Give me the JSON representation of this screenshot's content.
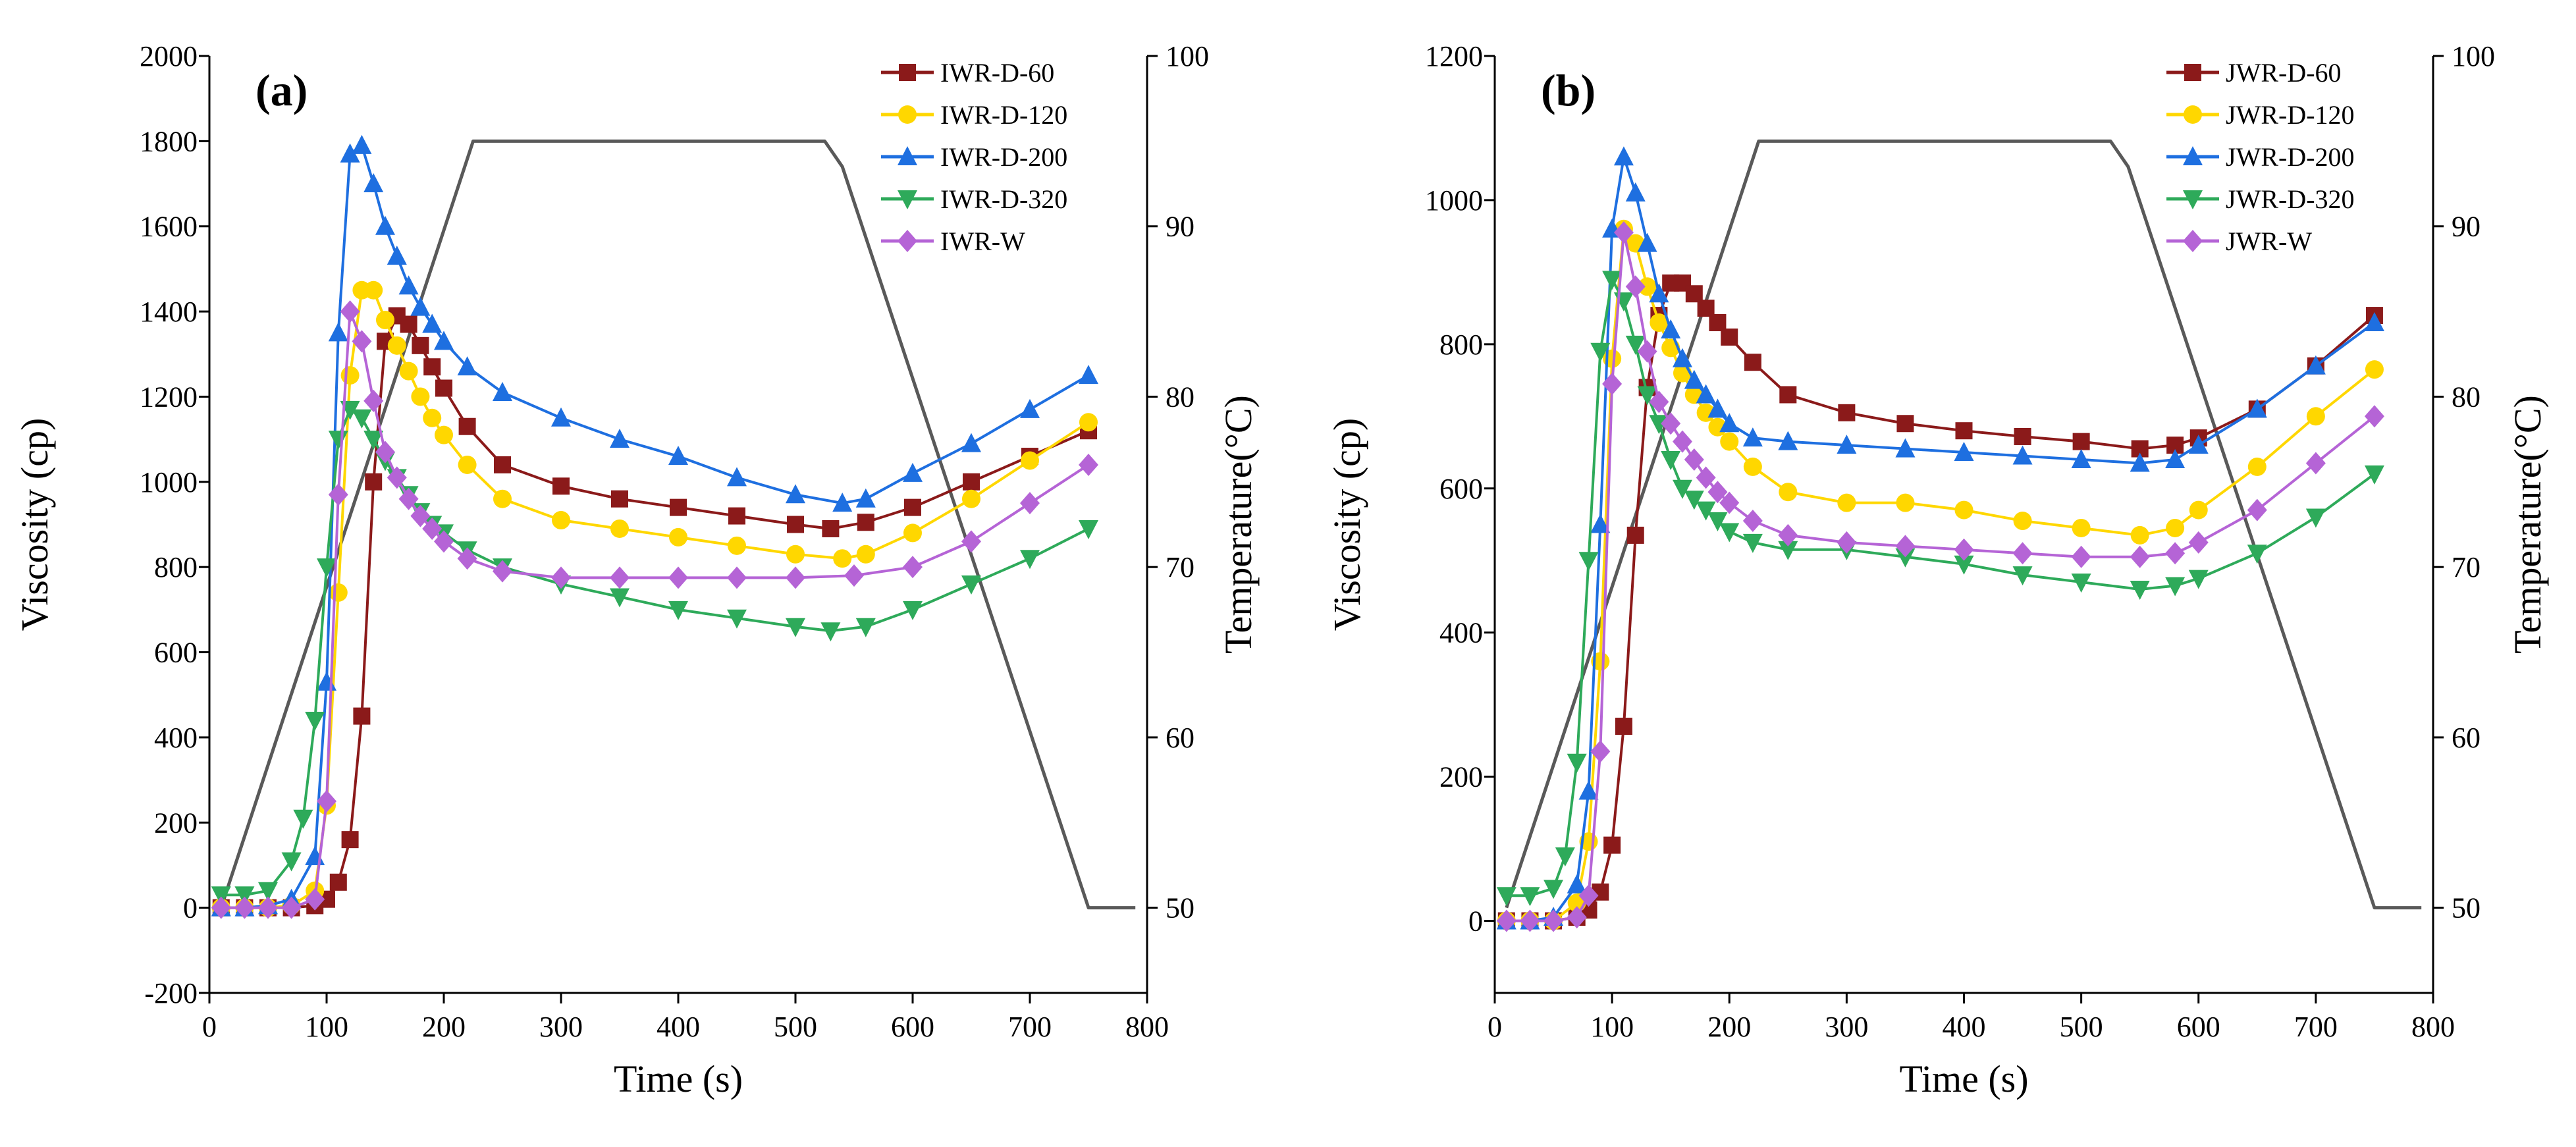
{
  "chart_data": [
    {
      "type": "line",
      "panel_label": "(a)",
      "xlabel": "Time (s)",
      "ylabel": "Viscosity (cp)",
      "y2label": "Temperature(°C)",
      "xlim": [
        0,
        800
      ],
      "ylim": [
        -200,
        2000
      ],
      "y2lim": [
        45,
        100
      ],
      "xticks": [
        0,
        100,
        200,
        300,
        400,
        500,
        600,
        700,
        800
      ],
      "yticks": [
        -200,
        0,
        200,
        400,
        600,
        800,
        1000,
        1200,
        1400,
        1600,
        1800,
        2000
      ],
      "y2ticks": [
        50,
        60,
        70,
        80,
        90,
        100
      ],
      "legend_position": "top-right",
      "temperature": {
        "x": [
          10,
          225,
          525,
          540,
          750,
          790
        ],
        "y": [
          50,
          95,
          95,
          93.5,
          50,
          50
        ]
      },
      "series": [
        {
          "name": "IWR-D-60",
          "color": "#8B1A1A",
          "marker": "square",
          "x": [
            10,
            30,
            50,
            70,
            90,
            100,
            110,
            120,
            130,
            140,
            150,
            160,
            170,
            180,
            190,
            200,
            220,
            250,
            300,
            350,
            400,
            450,
            500,
            530,
            560,
            600,
            650,
            700,
            750
          ],
          "y": [
            0,
            0,
            0,
            0,
            5,
            20,
            60,
            160,
            450,
            1000,
            1330,
            1390,
            1370,
            1320,
            1270,
            1220,
            1130,
            1040,
            990,
            960,
            940,
            920,
            900,
            890,
            905,
            940,
            1000,
            1060,
            1120
          ]
        },
        {
          "name": "IWR-D-120",
          "color": "#FFD700",
          "marker": "circle",
          "x": [
            10,
            30,
            50,
            70,
            90,
            100,
            110,
            120,
            130,
            140,
            150,
            160,
            170,
            180,
            190,
            200,
            220,
            250,
            300,
            350,
            400,
            450,
            500,
            540,
            560,
            600,
            650,
            700,
            750
          ],
          "y": [
            0,
            0,
            0,
            5,
            40,
            240,
            740,
            1250,
            1450,
            1450,
            1380,
            1320,
            1260,
            1200,
            1150,
            1110,
            1040,
            960,
            910,
            890,
            870,
            850,
            830,
            820,
            830,
            880,
            960,
            1050,
            1140
          ]
        },
        {
          "name": "IWR-D-200",
          "color": "#1E6FE0",
          "marker": "triangle-up",
          "x": [
            10,
            30,
            50,
            70,
            90,
            100,
            110,
            120,
            130,
            140,
            150,
            160,
            170,
            180,
            190,
            200,
            220,
            250,
            300,
            350,
            400,
            450,
            500,
            540,
            560,
            600,
            650,
            700,
            750
          ],
          "y": [
            0,
            0,
            5,
            20,
            120,
            530,
            1350,
            1770,
            1790,
            1700,
            1600,
            1530,
            1460,
            1410,
            1370,
            1330,
            1270,
            1210,
            1150,
            1100,
            1060,
            1010,
            970,
            950,
            960,
            1020,
            1090,
            1170,
            1250
          ]
        },
        {
          "name": "IWR-D-320",
          "color": "#2EAA5A",
          "marker": "triangle-down",
          "x": [
            10,
            30,
            50,
            70,
            80,
            90,
            100,
            110,
            120,
            130,
            140,
            150,
            160,
            170,
            180,
            190,
            200,
            220,
            250,
            300,
            350,
            400,
            450,
            500,
            530,
            560,
            600,
            650,
            700,
            750
          ],
          "y": [
            30,
            30,
            40,
            110,
            210,
            440,
            800,
            1100,
            1170,
            1150,
            1100,
            1050,
            1010,
            970,
            930,
            900,
            880,
            840,
            800,
            760,
            730,
            700,
            680,
            660,
            650,
            660,
            700,
            760,
            820,
            890
          ]
        },
        {
          "name": "IWR-W",
          "color": "#B564D6",
          "marker": "diamond",
          "x": [
            10,
            30,
            50,
            70,
            90,
            100,
            110,
            120,
            130,
            140,
            150,
            160,
            170,
            180,
            190,
            200,
            220,
            250,
            300,
            350,
            400,
            450,
            500,
            550,
            600,
            650,
            700,
            750
          ],
          "y": [
            0,
            0,
            0,
            0,
            20,
            250,
            970,
            1400,
            1330,
            1190,
            1070,
            1010,
            960,
            920,
            890,
            860,
            820,
            790,
            775,
            775,
            775,
            775,
            775,
            780,
            800,
            860,
            950,
            1040
          ]
        }
      ]
    },
    {
      "type": "line",
      "panel_label": "(b)",
      "xlabel": "Time (s)",
      "ylabel": "Viscosity (cp)",
      "y2label": "Temperature(°C)",
      "xlim": [
        0,
        800
      ],
      "ylim": [
        -100,
        1200
      ],
      "y2lim": [
        45,
        100
      ],
      "xticks": [
        0,
        100,
        200,
        300,
        400,
        500,
        600,
        700,
        800
      ],
      "yticks": [
        0,
        200,
        400,
        600,
        800,
        1000,
        1200
      ],
      "y2ticks": [
        50,
        60,
        70,
        80,
        90,
        100
      ],
      "legend_position": "top-right",
      "temperature": {
        "x": [
          10,
          225,
          525,
          540,
          750,
          790
        ],
        "y": [
          50,
          95,
          95,
          93.5,
          50,
          50
        ]
      },
      "series": [
        {
          "name": "JWR-D-60",
          "color": "#8B1A1A",
          "marker": "square",
          "x": [
            10,
            30,
            50,
            70,
            80,
            90,
            100,
            110,
            120,
            130,
            140,
            150,
            160,
            170,
            180,
            190,
            200,
            220,
            250,
            300,
            350,
            400,
            450,
            500,
            550,
            580,
            600,
            650,
            700,
            750
          ],
          "y": [
            0,
            0,
            0,
            5,
            15,
            40,
            105,
            270,
            535,
            740,
            840,
            885,
            885,
            870,
            850,
            830,
            810,
            775,
            730,
            705,
            690,
            680,
            672,
            665,
            655,
            660,
            670,
            710,
            770,
            840
          ]
        },
        {
          "name": "JWR-D-120",
          "color": "#FFD700",
          "marker": "circle",
          "x": [
            10,
            30,
            50,
            70,
            80,
            90,
            100,
            110,
            120,
            130,
            140,
            150,
            160,
            170,
            180,
            190,
            200,
            220,
            250,
            300,
            350,
            400,
            450,
            500,
            550,
            580,
            600,
            650,
            700,
            750
          ],
          "y": [
            0,
            0,
            0,
            25,
            110,
            360,
            780,
            960,
            940,
            880,
            830,
            795,
            760,
            730,
            705,
            685,
            665,
            630,
            595,
            580,
            580,
            570,
            555,
            545,
            535,
            545,
            570,
            630,
            700,
            765
          ]
        },
        {
          "name": "JWR-D-200",
          "color": "#1E6FE0",
          "marker": "triangle-up",
          "x": [
            10,
            30,
            50,
            70,
            80,
            90,
            100,
            110,
            120,
            130,
            140,
            150,
            160,
            170,
            180,
            190,
            200,
            220,
            250,
            300,
            350,
            400,
            450,
            500,
            550,
            580,
            600,
            650,
            700,
            750
          ],
          "y": [
            0,
            0,
            5,
            50,
            180,
            550,
            960,
            1060,
            1010,
            940,
            870,
            820,
            780,
            750,
            730,
            710,
            690,
            670,
            665,
            660,
            655,
            650,
            645,
            640,
            635,
            640,
            660,
            710,
            770,
            830
          ]
        },
        {
          "name": "JWR-D-320",
          "color": "#2EAA5A",
          "marker": "triangle-down",
          "x": [
            10,
            30,
            50,
            60,
            70,
            80,
            90,
            100,
            110,
            120,
            130,
            140,
            150,
            160,
            170,
            180,
            190,
            200,
            220,
            250,
            300,
            350,
            400,
            450,
            500,
            550,
            580,
            600,
            650,
            700,
            750
          ],
          "y": [
            35,
            35,
            45,
            90,
            220,
            500,
            790,
            890,
            860,
            800,
            730,
            690,
            640,
            600,
            585,
            570,
            555,
            540,
            525,
            515,
            515,
            505,
            495,
            480,
            470,
            460,
            465,
            475,
            510,
            560,
            620
          ]
        },
        {
          "name": "JWR-W",
          "color": "#B564D6",
          "marker": "diamond",
          "x": [
            10,
            30,
            50,
            70,
            80,
            90,
            100,
            110,
            120,
            130,
            140,
            150,
            160,
            170,
            180,
            190,
            200,
            220,
            250,
            300,
            350,
            400,
            450,
            500,
            550,
            580,
            600,
            650,
            700,
            750
          ],
          "y": [
            0,
            0,
            0,
            5,
            35,
            235,
            745,
            955,
            880,
            790,
            720,
            690,
            665,
            640,
            615,
            595,
            580,
            555,
            535,
            525,
            520,
            515,
            510,
            505,
            505,
            510,
            525,
            570,
            635,
            700
          ]
        }
      ]
    }
  ]
}
